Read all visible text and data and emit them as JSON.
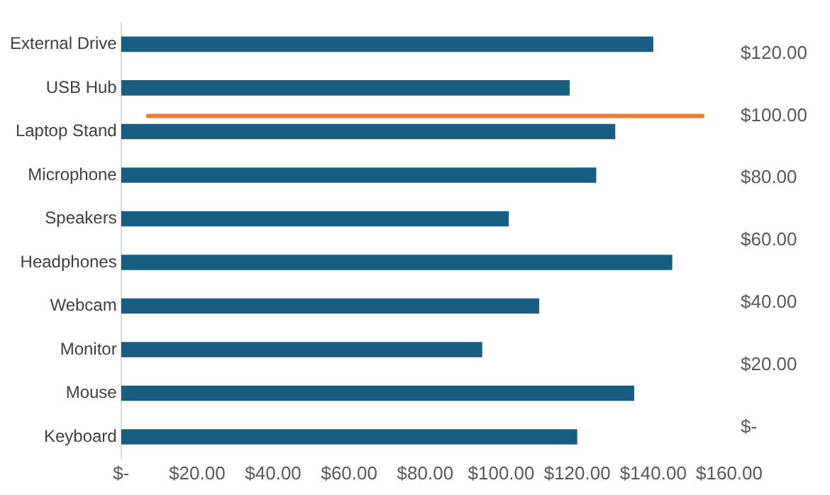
{
  "chart_data": {
    "type": "bar",
    "orientation": "horizontal",
    "categories": [
      "External Drive",
      "USB Hub",
      "Laptop Stand",
      "Microphone",
      "Speakers",
      "Headphones",
      "Webcam",
      "Monitor",
      "Mouse",
      "Keyboard"
    ],
    "values": [
      140,
      118,
      130,
      125,
      102,
      145,
      110,
      95,
      135,
      120
    ],
    "color": "#175e82",
    "xlim": [
      0,
      160
    ],
    "xticks": [
      {
        "value": 0,
        "label": "$-"
      },
      {
        "value": 20,
        "label": "$20.00"
      },
      {
        "value": 40,
        "label": "$40.00"
      },
      {
        "value": 60,
        "label": "$60.00"
      },
      {
        "value": 80,
        "label": "$80.00"
      },
      {
        "value": 100,
        "label": "$100.00"
      },
      {
        "value": 120,
        "label": "$120.00"
      },
      {
        "value": 140,
        "label": "$140.00"
      },
      {
        "value": 160,
        "label": "$160.00"
      }
    ],
    "y2lim": [
      0,
      120
    ],
    "y2ticks": [
      {
        "value": 0,
        "label": "$-"
      },
      {
        "value": 20,
        "label": "$20.00"
      },
      {
        "value": 40,
        "label": "$40.00"
      },
      {
        "value": 60,
        "label": "$60.00"
      },
      {
        "value": 80,
        "label": "$80.00"
      },
      {
        "value": 100,
        "label": "$100.00"
      },
      {
        "value": 120,
        "label": "$120.00"
      }
    ],
    "ref_lines": [
      {
        "axis": "y2",
        "value": 100,
        "color": "#ed7d31"
      }
    ],
    "grid": false,
    "legend": false
  }
}
